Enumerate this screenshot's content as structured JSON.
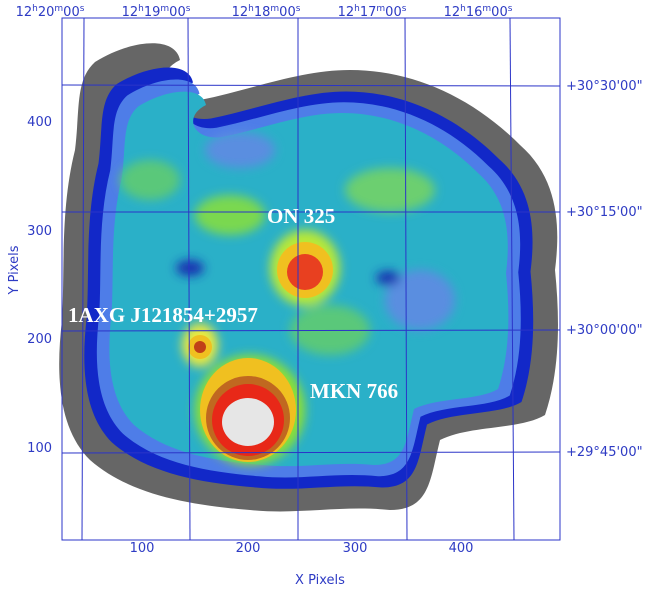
{
  "axes": {
    "x_label": "X Pixels",
    "y_label": "Y Pixels",
    "x_ticks": [
      "100",
      "200",
      "300",
      "400"
    ],
    "y_ticks": [
      "100",
      "200",
      "300",
      "400"
    ],
    "top_ticks": [
      "12h20m00s",
      "12h19m00s",
      "12h18m00s",
      "12h17m00s",
      "12h16m00s"
    ],
    "right_ticks": [
      "+30°30'00\"",
      "+30°15'00\"",
      "+30°00'00\"",
      "+29°45'00\""
    ]
  },
  "labels": [
    "ON 325",
    "1AXG J121854+2957",
    "MKN 766"
  ]
}
